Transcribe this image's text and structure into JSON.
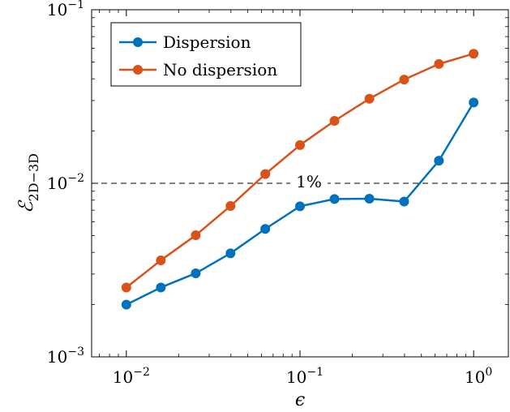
{
  "chart_data": {
    "type": "line",
    "x_scale": "log",
    "y_scale": "log",
    "xlim": [
      0.00631,
      1.585
    ],
    "ylim": [
      0.001,
      0.1
    ],
    "x_ticks": [
      0.01,
      0.1,
      1
    ],
    "x_tick_labels": [
      {
        "base": "10",
        "exp": "−2"
      },
      {
        "base": "10",
        "exp": "−1"
      },
      {
        "base": "10",
        "exp": "0"
      }
    ],
    "y_ticks": [
      0.001,
      0.01,
      0.1
    ],
    "y_tick_labels": [
      {
        "base": "10",
        "exp": "−3"
      },
      {
        "base": "10",
        "exp": "−2"
      },
      {
        "base": "10",
        "exp": "−1"
      }
    ],
    "xlabel": "ϵ",
    "ylabel": {
      "main": "ℰ",
      "sub": "2D−3D"
    },
    "x": [
      0.01,
      0.0158,
      0.0251,
      0.0398,
      0.0631,
      0.1,
      0.158,
      0.251,
      0.398,
      0.631,
      1.0
    ],
    "series": [
      {
        "name": "Dispersion",
        "color": "#0072BD",
        "values": [
          0.002,
          0.00251,
          0.00303,
          0.00395,
          0.00546,
          0.00737,
          0.00812,
          0.00815,
          0.00785,
          0.0135,
          0.0292
        ]
      },
      {
        "name": "No dispersion",
        "color": "#D95319",
        "values": [
          0.00251,
          0.0036,
          0.00502,
          0.0074,
          0.0113,
          0.0166,
          0.0229,
          0.0307,
          0.0396,
          0.0487,
          0.0558
        ]
      }
    ],
    "reference_line": {
      "y": 0.01,
      "label": "1%",
      "style": "dashed"
    },
    "legend_position": "top-left",
    "grid": false
  }
}
